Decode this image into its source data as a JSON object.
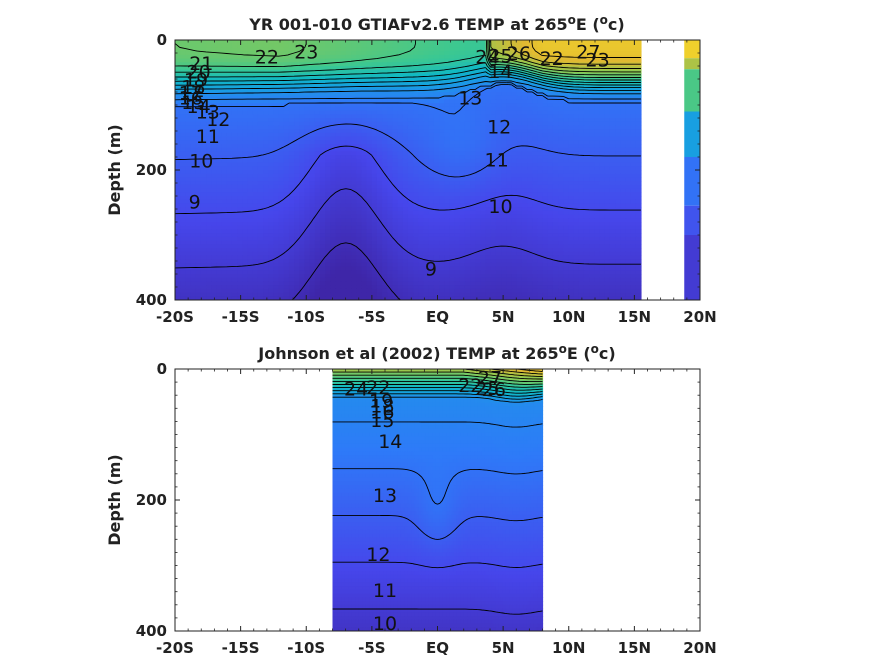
{
  "chart_data": [
    {
      "type": "heatmap",
      "title_prefix": "YR 001-010 GTIAFv2.6 TEMP at 265",
      "title_sup1": "o",
      "title_mid": "E (",
      "title_sup2": "o",
      "title_suffix": "c)",
      "ylabel": "Depth (m)",
      "xlim": [
        -20,
        20
      ],
      "ylim": [
        400,
        0
      ],
      "xticks": [
        -20,
        -15,
        -10,
        -5,
        0,
        5,
        10,
        15,
        20
      ],
      "xtick_labels": [
        "-20S",
        "-15S",
        "-10S",
        "-5S",
        "EQ",
        "5N",
        "10N",
        "15N",
        "20N"
      ],
      "yticks": [
        0,
        200,
        400
      ],
      "ytick_labels": [
        "0",
        "200",
        "400"
      ],
      "data_extent_x": [
        -20,
        15.5
      ],
      "contour_levels": [
        9,
        10,
        11,
        12,
        13,
        14,
        15,
        16,
        17,
        18,
        19,
        20,
        21,
        22,
        23,
        24,
        25,
        26,
        27
      ],
      "contour_labels": [
        {
          "text": "23",
          "x": -10,
          "y": 20
        },
        {
          "text": "22",
          "x": -13,
          "y": 28
        },
        {
          "text": "21",
          "x": -18,
          "y": 38
        },
        {
          "text": "20",
          "x": -18.2,
          "y": 51
        },
        {
          "text": "19",
          "x": -18.4,
          "y": 63
        },
        {
          "text": "18",
          "x": -18.6,
          "y": 74
        },
        {
          "text": "17",
          "x": -18.8,
          "y": 83
        },
        {
          "text": "16",
          "x": -18.8,
          "y": 91
        },
        {
          "text": "15",
          "x": -18.6,
          "y": 98
        },
        {
          "text": "14",
          "x": -18.2,
          "y": 104
        },
        {
          "text": "13",
          "x": -17.5,
          "y": 112
        },
        {
          "text": "12",
          "x": -16.7,
          "y": 124
        },
        {
          "text": "11",
          "x": -17.5,
          "y": 150
        },
        {
          "text": "10",
          "x": -18,
          "y": 188
        },
        {
          "text": "9",
          "x": -18.5,
          "y": 251
        },
        {
          "text": "9",
          "x": -0.5,
          "y": 354
        },
        {
          "text": "10",
          "x": 4.8,
          "y": 258
        },
        {
          "text": "11",
          "x": 4.5,
          "y": 186
        },
        {
          "text": "12",
          "x": 4.7,
          "y": 135
        },
        {
          "text": "13",
          "x": 2.5,
          "y": 91
        },
        {
          "text": "14",
          "x": 4.8,
          "y": 50
        },
        {
          "text": "24",
          "x": 3.8,
          "y": 28
        },
        {
          "text": "25",
          "x": 4.8,
          "y": 26
        },
        {
          "text": "26",
          "x": 6.2,
          "y": 22
        },
        {
          "text": "22",
          "x": 8.7,
          "y": 30
        },
        {
          "text": "27",
          "x": 11.5,
          "y": 20
        },
        {
          "text": "23",
          "x": 12.2,
          "y": 32
        }
      ]
    },
    {
      "type": "heatmap",
      "title_prefix": "Johnson et al (2002) TEMP at 265",
      "title_sup1": "o",
      "title_mid": "E (",
      "title_sup2": "o",
      "title_suffix": "c)",
      "ylabel": "Depth (m)",
      "xlim": [
        -20,
        20
      ],
      "ylim": [
        400,
        0
      ],
      "xticks": [
        -20,
        -15,
        -10,
        -5,
        0,
        5,
        10,
        15,
        20
      ],
      "xtick_labels": [
        "-20S",
        "-15S",
        "-10S",
        "-5S",
        "EQ",
        "5N",
        "10N",
        "15N",
        "20N"
      ],
      "yticks": [
        0,
        200,
        400
      ],
      "ytick_labels": [
        "0",
        "200",
        "400"
      ],
      "data_extent_x": [
        -8,
        8
      ],
      "contour_levels": [
        10,
        11,
        12,
        13,
        14,
        15,
        16,
        17,
        18,
        19,
        20,
        21,
        22,
        23,
        24,
        25,
        26,
        27
      ],
      "contour_labels": [
        {
          "text": "24",
          "x": -6.2,
          "y": 32
        },
        {
          "text": "22",
          "x": -4.5,
          "y": 30
        },
        {
          "text": "19",
          "x": -4.3,
          "y": 50
        },
        {
          "text": "18",
          "x": -4.2,
          "y": 58
        },
        {
          "text": "16",
          "x": -4.2,
          "y": 67
        },
        {
          "text": "15",
          "x": -4.2,
          "y": 80
        },
        {
          "text": "14",
          "x": -3.6,
          "y": 112
        },
        {
          "text": "13",
          "x": -4.0,
          "y": 195
        },
        {
          "text": "12",
          "x": -4.5,
          "y": 285
        },
        {
          "text": "11",
          "x": -4.0,
          "y": 340
        },
        {
          "text": "10",
          "x": -4.0,
          "y": 390
        },
        {
          "text": "22",
          "x": 2.5,
          "y": 27
        },
        {
          "text": "25",
          "x": 3.8,
          "y": 31
        },
        {
          "text": "26",
          "x": 4.3,
          "y": 33
        },
        {
          "text": "27",
          "x": 4.0,
          "y": 15
        }
      ]
    }
  ]
}
